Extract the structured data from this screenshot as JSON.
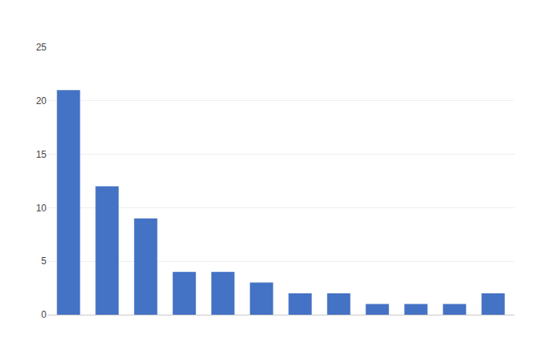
{
  "chart_data": {
    "type": "bar",
    "categories": [
      null,
      null,
      null,
      null,
      null,
      null,
      null,
      null,
      null,
      null,
      null,
      null
    ],
    "values": [
      21,
      12,
      9,
      4,
      4,
      3,
      2,
      2,
      1,
      1,
      1,
      2
    ],
    "color": "#4472C4",
    "ylim": [
      0,
      25
    ],
    "yticks": [
      0,
      5,
      10,
      15,
      20,
      25
    ],
    "grid": true,
    "tick_labels": "y"
  }
}
